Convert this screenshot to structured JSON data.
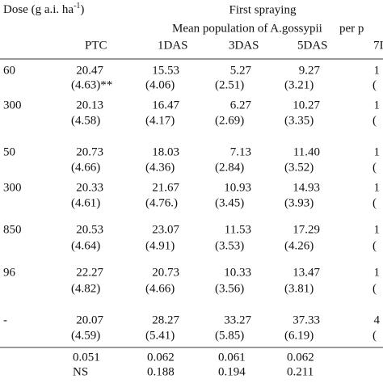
{
  "header": {
    "dose": "Dose (g a.i. ha",
    "dose_sup": "-1",
    "dose_close": ")",
    "spraying": "First spraying",
    "mean": "Mean population of A.gossypii",
    "per": "per p",
    "columns": [
      "PTC",
      "1DAS",
      "3DAS",
      "5DAS",
      "7I"
    ]
  },
  "table": {
    "rows": [
      {
        "dose": "60",
        "cells": [
          [
            "20.47",
            "(4.63)**"
          ],
          [
            "15.53",
            "(4.06)"
          ],
          [
            "5.27",
            "(2.51)"
          ],
          [
            "9.27",
            "(3.21)"
          ],
          [
            "1",
            "("
          ]
        ]
      },
      {
        "dose": "300",
        "cells": [
          [
            "20.13",
            "(4.58)"
          ],
          [
            "16.47",
            "(4.17)"
          ],
          [
            "6.27",
            "(2.69)"
          ],
          [
            "10.27",
            "(3.35)"
          ],
          [
            "1",
            "("
          ]
        ]
      },
      {
        "dose": "50",
        "cells": [
          [
            "20.73",
            "(4.66)"
          ],
          [
            "18.03",
            "(4.36)"
          ],
          [
            "7.13",
            "(2.84)"
          ],
          [
            "11.40",
            "(3.52)"
          ],
          [
            "1",
            "("
          ]
        ]
      },
      {
        "dose": "300",
        "cells": [
          [
            "20.33",
            "(4.61)"
          ],
          [
            "21.67",
            "(4.76.)"
          ],
          [
            "10.93",
            "(3.45)"
          ],
          [
            "14.93",
            "(3.93)"
          ],
          [
            "1",
            "("
          ]
        ]
      },
      {
        "dose": "850",
        "cells": [
          [
            "20.53",
            "(4.64)"
          ],
          [
            "23.07",
            "(4.91)"
          ],
          [
            "11.53",
            "(3.53)"
          ],
          [
            "17.29",
            "(4.26)"
          ],
          [
            "1",
            "("
          ]
        ]
      },
      {
        "dose": "96",
        "cells": [
          [
            "22.27",
            "(4.82)"
          ],
          [
            "20.73",
            "(4.66)"
          ],
          [
            "10.33",
            "(3.56)"
          ],
          [
            "13.47",
            "(3.81)"
          ],
          [
            "1",
            "("
          ]
        ]
      },
      {
        "dose": "-",
        "cells": [
          [
            "20.07",
            "(4.59)"
          ],
          [
            "28.27",
            "(5.41)"
          ],
          [
            "33.27",
            "(5.85)"
          ],
          [
            "37.33",
            "(6.19)"
          ],
          [
            "4",
            "("
          ]
        ]
      }
    ],
    "footer": [
      [
        "0.051",
        "0.062",
        "0.061",
        "0.062"
      ],
      [
        "NS",
        "0.188",
        "0.194",
        "0.211"
      ]
    ]
  }
}
